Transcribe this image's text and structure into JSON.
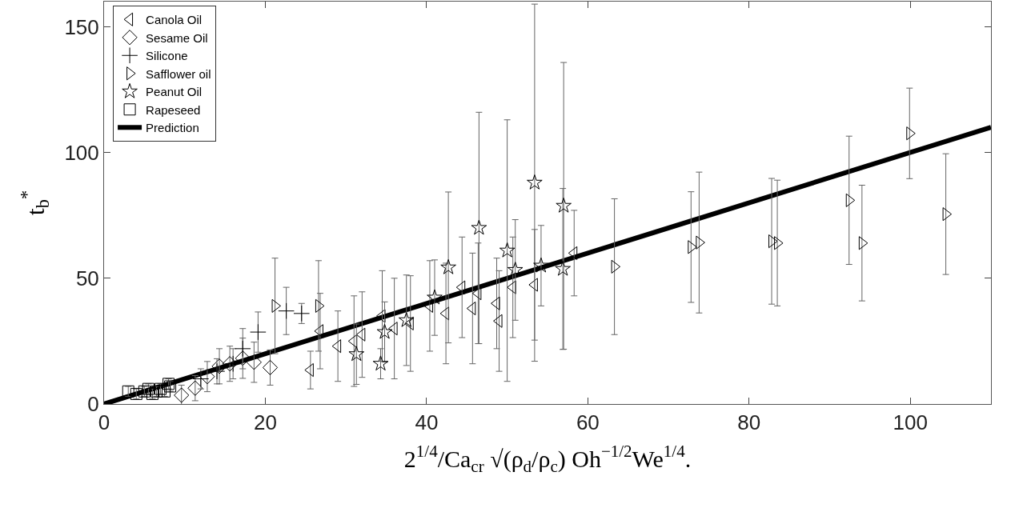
{
  "chart_data": {
    "type": "scatter",
    "xlabel": "2$^{1/4}$/Ca$_{cr}$ √(ρ$_{d}$/ρ$_{c}$) Oh$^{−1/2}$We$^{1/4}$.",
    "ylabel": "t$_{b}$$^{*}$",
    "xlim": [
      0,
      110
    ],
    "xticks": [
      0,
      20,
      40,
      60,
      80,
      100
    ],
    "ylim": [
      0,
      160
    ],
    "yticks": [
      0,
      50,
      100,
      150
    ],
    "grid": false,
    "legend": "top left",
    "series": [
      {
        "name": "Canola Oil",
        "color": "#000000",
        "marker": "triangle-left",
        "x": [
          25.6,
          26.8,
          29,
          31,
          32,
          34.5,
          36,
          38,
          40.4,
          42.4,
          44.4,
          45.7,
          46.4,
          48.7,
          49,
          50.7,
          53.4,
          58.3
        ],
        "values": [
          13.5,
          29,
          23,
          25,
          27.6,
          35,
          30,
          32,
          39,
          36,
          46.4,
          38,
          44,
          40,
          33,
          46.4,
          47.4,
          60
        ],
        "errors": [
          7.5,
          15,
          14,
          18,
          17,
          18,
          20,
          19,
          18,
          20,
          20,
          22,
          20,
          18,
          20,
          20,
          22,
          17
        ]
      },
      {
        "name": "Sesame Oil",
        "color": "#000000",
        "marker": "diamond",
        "x": [
          9.6,
          11.3,
          12.8,
          14.3,
          15.6,
          17.2,
          18.6,
          20.6
        ],
        "values": [
          3.5,
          6.3,
          10.9,
          15,
          16,
          18.2,
          16.6,
          14.5
        ],
        "errors": [
          4,
          5,
          6,
          7,
          7,
          8,
          8,
          7
        ]
      },
      {
        "name": "Silicone",
        "color": "#000000",
        "marker": "cross",
        "x": [
          12,
          14,
          16,
          17.2,
          19.1,
          22.6,
          24.5
        ],
        "values": [
          10,
          13,
          16,
          22,
          28.6,
          37,
          36
        ],
        "errors": [
          4,
          5,
          6,
          8,
          8,
          9.4,
          4
        ]
      },
      {
        "name": "Safflower oil",
        "color": "#000000",
        "marker": "triangle-right",
        "x": [
          21.2,
          26.6,
          63.3,
          72.8,
          73.8,
          82.8,
          83.5,
          92.4,
          94,
          99.9,
          104.4
        ],
        "values": [
          39,
          39,
          54.6,
          62.4,
          64.2,
          64.7,
          64,
          81,
          64,
          107.6,
          75.5
        ],
        "errors": [
          19,
          18,
          27,
          22,
          28,
          25,
          25,
          25.5,
          23,
          18,
          24
        ]
      },
      {
        "name": "Peanut Oil",
        "color": "#000000",
        "marker": "star",
        "x": [
          31.3,
          34.3,
          34.8,
          37.5,
          41,
          42.7,
          46.5,
          50,
          51,
          53.4,
          54.2,
          57,
          56.9
        ],
        "values": [
          19.8,
          16,
          28.6,
          33.3,
          42.3,
          54.3,
          70,
          61,
          53.3,
          88,
          55,
          78.8,
          53.7
        ],
        "errors": [
          12,
          6,
          12,
          18,
          15,
          30,
          46,
          52,
          20,
          71,
          16,
          57,
          32
        ]
      },
      {
        "name": "Rapeseed",
        "color": "#000000",
        "marker": "square",
        "x": [
          3,
          4,
          5,
          5.5,
          6,
          6.5,
          7,
          7.5,
          8,
          8.2
        ],
        "values": [
          5,
          4,
          5,
          6,
          4,
          5,
          6,
          5,
          8,
          7
        ],
        "errors": [
          2,
          2,
          2,
          2,
          2,
          2,
          2,
          2,
          2,
          2
        ]
      },
      {
        "name": "Prediction",
        "color": "#000000",
        "type": "line",
        "marker": "none",
        "x": [
          0,
          110
        ],
        "values": [
          0,
          110
        ]
      }
    ]
  }
}
